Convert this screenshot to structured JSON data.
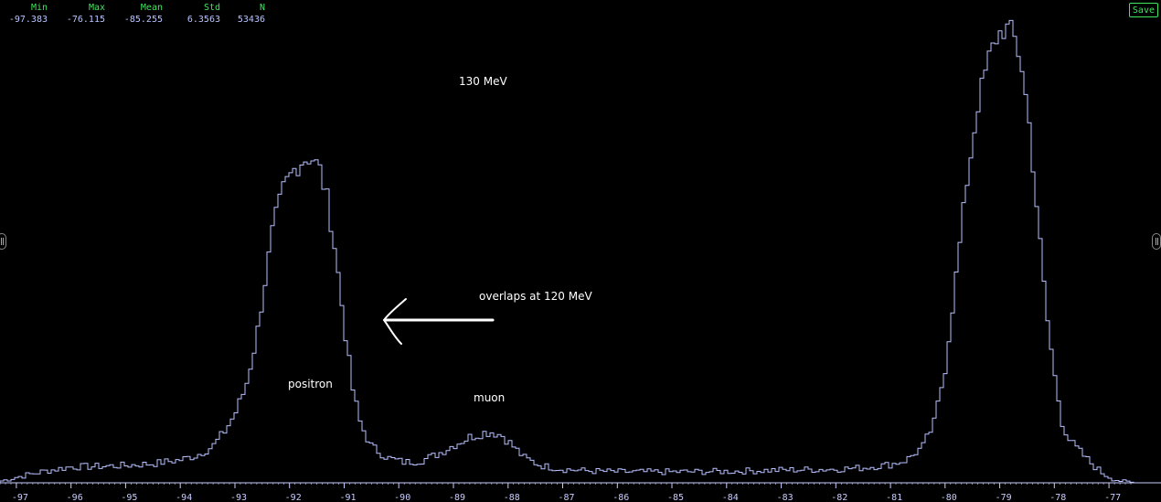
{
  "stats": {
    "headers": [
      "Min",
      "Max",
      "Mean",
      "Std",
      "N"
    ],
    "values": [
      "-97.383",
      "-76.115",
      "-85.255",
      "6.3563",
      "53436"
    ]
  },
  "toolbar": {
    "save_label": "Save"
  },
  "colors": {
    "line": "#b8c0ff",
    "axis": "#c8ccff",
    "stat_header": "#3ee65a",
    "button": "#3ee65a",
    "annotation": "#ffffff"
  },
  "annotations": {
    "energy_label": "130 MeV",
    "overlap_label": "overlaps at 120 MeV",
    "positron_label": "positron",
    "muon_label": "muon"
  },
  "chart_data": {
    "type": "histogram",
    "title": "",
    "xlabel": "",
    "ylabel": "",
    "xlim": [
      -97.3,
      -76.55
    ],
    "ylim": [
      0,
      1000
    ],
    "x_ticks": [
      -97,
      -96,
      -95,
      -94,
      -93,
      -92,
      -91,
      -90,
      -89,
      -88,
      -87,
      -86,
      -85,
      -84,
      -83,
      -82,
      -81,
      -80,
      -79,
      -78,
      -77
    ],
    "grid": false,
    "legend": "none",
    "peaks": [
      {
        "label": "positron",
        "center": -91.6,
        "height": 716
      },
      {
        "label": "muon",
        "center": -88.3,
        "height": 112
      },
      {
        "label": "",
        "center": -78.85,
        "height": 1000
      }
    ],
    "profile": [
      [
        -97.3,
        3
      ],
      [
        -97.0,
        12
      ],
      [
        -96.5,
        25
      ],
      [
        -96.0,
        35
      ],
      [
        -95.5,
        36
      ],
      [
        -95.0,
        38
      ],
      [
        -94.5,
        42
      ],
      [
        -94.0,
        50
      ],
      [
        -93.7,
        60
      ],
      [
        -93.4,
        80
      ],
      [
        -93.2,
        110
      ],
      [
        -93.0,
        150
      ],
      [
        -92.8,
        210
      ],
      [
        -92.6,
        320
      ],
      [
        -92.45,
        440
      ],
      [
        -92.3,
        560
      ],
      [
        -92.1,
        650
      ],
      [
        -91.9,
        690
      ],
      [
        -91.75,
        710
      ],
      [
        -91.6,
        716
      ],
      [
        -91.45,
        690
      ],
      [
        -91.3,
        620
      ],
      [
        -91.15,
        500
      ],
      [
        -91.0,
        350
      ],
      [
        -90.85,
        210
      ],
      [
        -90.7,
        130
      ],
      [
        -90.5,
        80
      ],
      [
        -90.2,
        55
      ],
      [
        -89.9,
        45
      ],
      [
        -89.6,
        48
      ],
      [
        -89.3,
        62
      ],
      [
        -89.0,
        82
      ],
      [
        -88.7,
        100
      ],
      [
        -88.45,
        110
      ],
      [
        -88.3,
        112
      ],
      [
        -88.1,
        104
      ],
      [
        -87.9,
        80
      ],
      [
        -87.7,
        55
      ],
      [
        -87.4,
        38
      ],
      [
        -87.0,
        30
      ],
      [
        -86.5,
        26
      ],
      [
        -86.0,
        24
      ],
      [
        -85.0,
        24
      ],
      [
        -84.0,
        25
      ],
      [
        -83.0,
        28
      ],
      [
        -82.0,
        30
      ],
      [
        -81.5,
        33
      ],
      [
        -81.0,
        40
      ],
      [
        -80.7,
        50
      ],
      [
        -80.4,
        80
      ],
      [
        -80.2,
        130
      ],
      [
        -80.0,
        250
      ],
      [
        -79.8,
        450
      ],
      [
        -79.6,
        660
      ],
      [
        -79.4,
        830
      ],
      [
        -79.2,
        930
      ],
      [
        -79.05,
        980
      ],
      [
        -78.9,
        1000
      ],
      [
        -78.75,
        985
      ],
      [
        -78.6,
        920
      ],
      [
        -78.45,
        780
      ],
      [
        -78.3,
        580
      ],
      [
        -78.15,
        380
      ],
      [
        -78.0,
        240
      ],
      [
        -77.85,
        130
      ],
      [
        -77.7,
        90
      ],
      [
        -77.5,
        65
      ],
      [
        -77.3,
        40
      ],
      [
        -77.1,
        20
      ],
      [
        -76.9,
        8
      ],
      [
        -76.7,
        2
      ],
      [
        -76.55,
        0
      ]
    ]
  }
}
